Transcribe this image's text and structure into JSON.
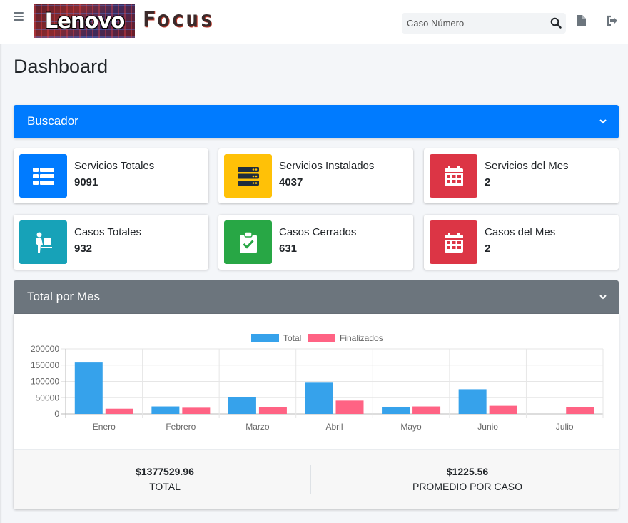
{
  "header": {
    "logo_text": "Lenovo",
    "app_name": "Focus",
    "search_placeholder": "Caso Número"
  },
  "page": {
    "title": "Dashboard"
  },
  "buscador": {
    "title": "Buscador"
  },
  "stats": [
    {
      "label": "Servicios Totales",
      "value": "9091",
      "color": "#007bff",
      "icon": "list-icon"
    },
    {
      "label": "Servicios Instalados",
      "value": "4037",
      "color": "#ffc107",
      "icon": "server-icon"
    },
    {
      "label": "Servicios del Mes",
      "value": "2",
      "color": "#dc3545",
      "icon": "calendar-icon"
    },
    {
      "label": "Casos Totales",
      "value": "932",
      "color": "#17a2b8",
      "icon": "person-dolly-icon"
    },
    {
      "label": "Casos Cerrados",
      "value": "631",
      "color": "#28a745",
      "icon": "clipboard-check-icon"
    },
    {
      "label": "Casos del Mes",
      "value": "2",
      "color": "#dc3545",
      "icon": "calendar-icon"
    }
  ],
  "total_mes": {
    "title": "Total por Mes",
    "total_value": "$1377529.96",
    "total_label": "TOTAL",
    "avg_value": "$1225.56",
    "avg_label": "PROMEDIO POR CASO"
  },
  "chart_data": {
    "type": "bar",
    "categories": [
      "Enero",
      "Febrero",
      "Marzo",
      "Abril",
      "Mayo",
      "Junio",
      "Julio"
    ],
    "series": [
      {
        "name": "Total",
        "color": "#36a2eb",
        "values": [
          158000,
          23000,
          52000,
          96000,
          22000,
          76000,
          0
        ]
      },
      {
        "name": "Finalizados",
        "color": "#ff6384",
        "values": [
          16000,
          19000,
          21000,
          41000,
          23000,
          25000,
          20000
        ]
      }
    ],
    "yticks": [
      "200000",
      "150000",
      "100000",
      "50000",
      "0"
    ],
    "ylim": [
      0,
      200000
    ],
    "grid": true,
    "legend": "top-center"
  }
}
